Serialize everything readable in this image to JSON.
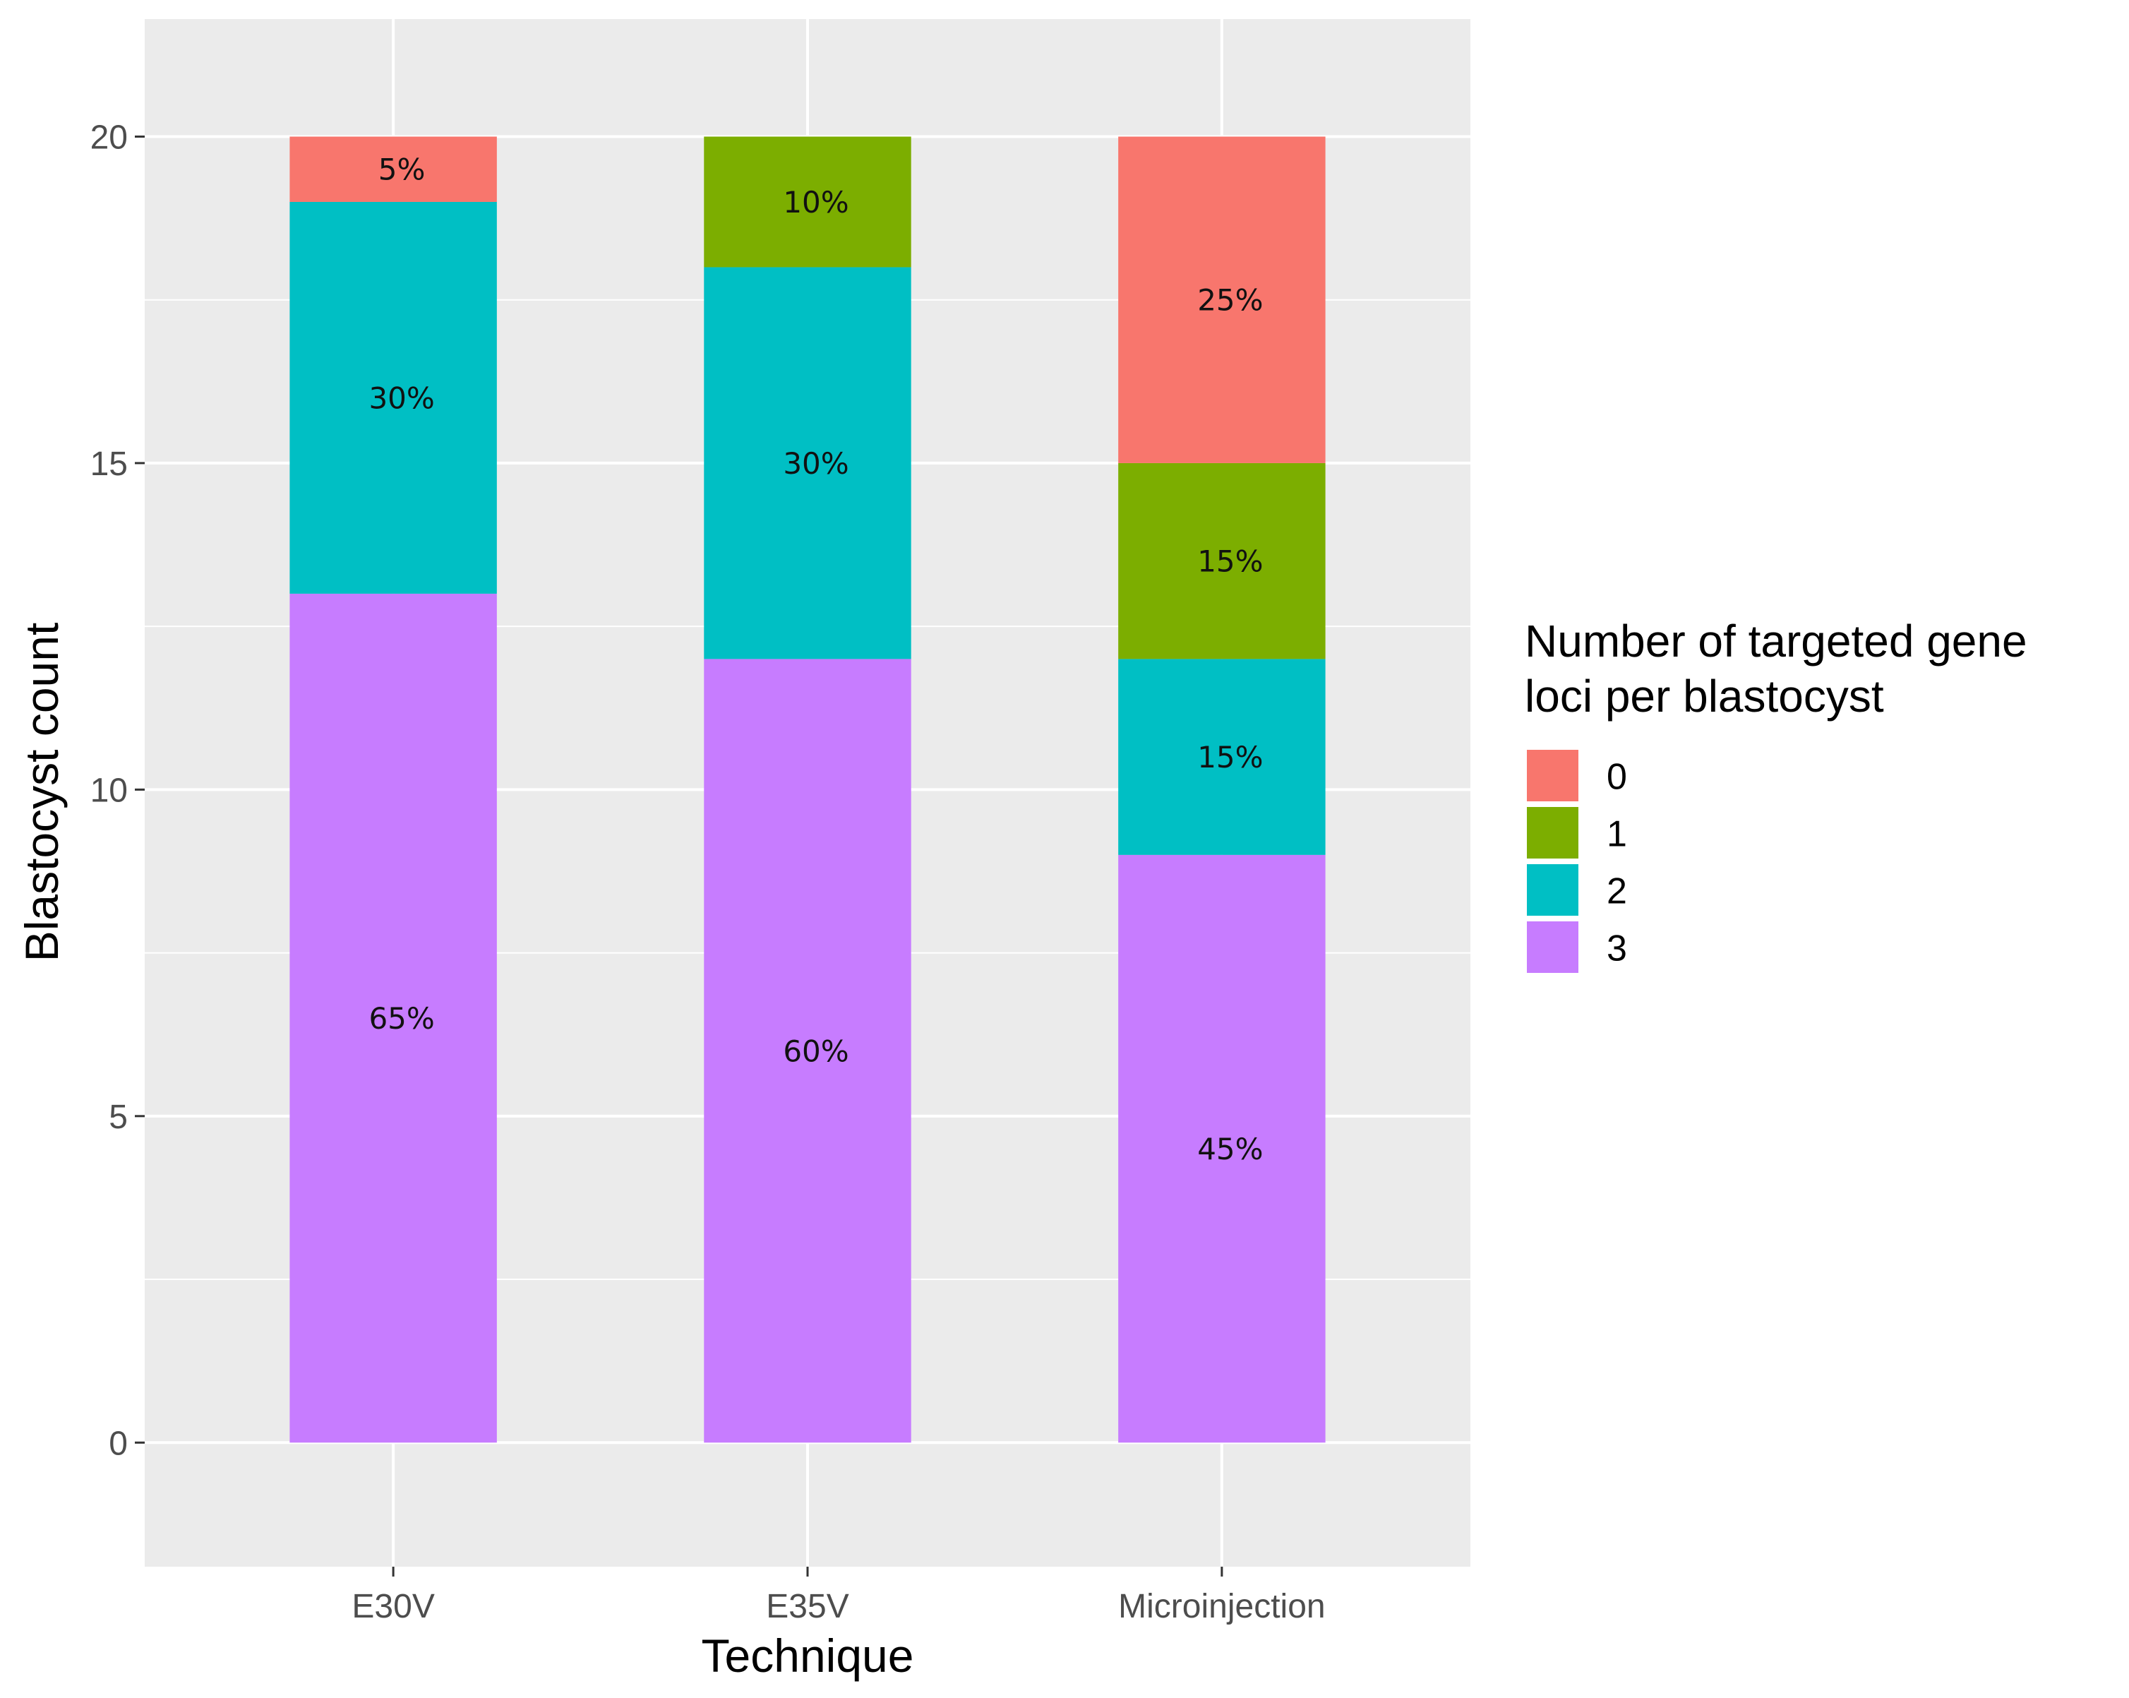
{
  "chart_data": {
    "type": "bar",
    "stacked": true,
    "categories": [
      "E30V",
      "E35V",
      "Microinjection"
    ],
    "series": [
      {
        "name": "3",
        "color": "#C77CFF",
        "values": [
          13,
          12,
          9
        ],
        "labels": [
          "65%",
          "60%",
          "45%"
        ]
      },
      {
        "name": "2",
        "color": "#00BFC4",
        "values": [
          6,
          6,
          3
        ],
        "labels": [
          "30%",
          "30%",
          "15%"
        ]
      },
      {
        "name": "1",
        "color": "#7CAE00",
        "values": [
          0,
          2,
          3
        ],
        "labels": [
          "",
          "10%",
          "15%"
        ]
      },
      {
        "name": "0",
        "color": "#F8766D",
        "values": [
          1,
          0,
          5
        ],
        "labels": [
          "5%",
          "",
          "25%"
        ]
      }
    ],
    "xlabel": "Technique",
    "ylabel": "Blastocyst count",
    "ylim": [
      -1.9,
      21.8
    ],
    "yticks": [
      0,
      5,
      10,
      15,
      20
    ],
    "ytick_labels": [
      "0",
      "5",
      "10",
      "15",
      "20"
    ],
    "legend": {
      "title_lines": [
        "Number of targeted gene",
        "loci per blastocyst"
      ],
      "order": [
        "0",
        "1",
        "2",
        "3"
      ],
      "position": "right"
    },
    "panel_background": "#EBEBEB",
    "grid_color": "#FFFFFF"
  }
}
